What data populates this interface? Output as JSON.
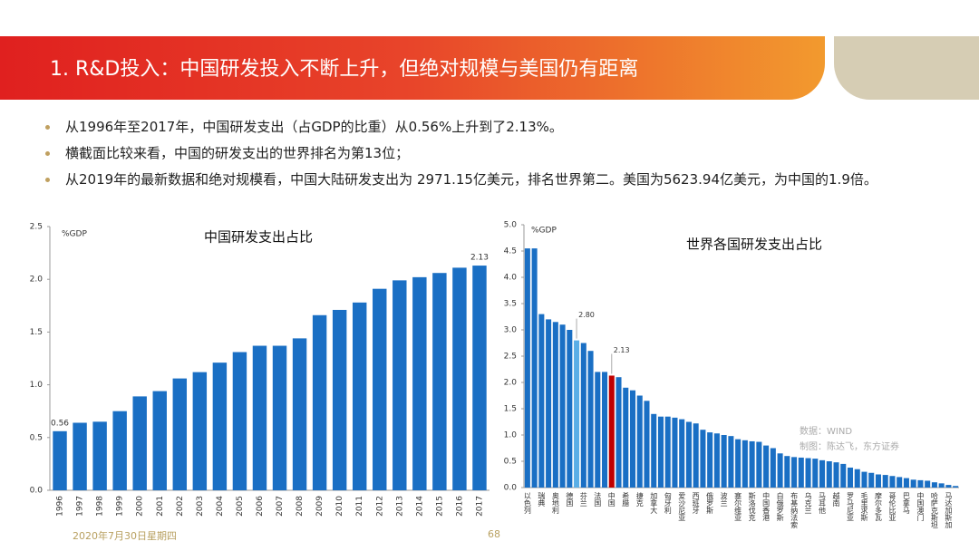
{
  "header": {
    "title": "1. R&D投入：中国研发投入不断上升，但绝对规模与美国仍有距离"
  },
  "bullets": [
    "从1996年至2017年，中国研发支出（占GDP的比重）从0.56%上升到了2.13%。",
    "横截面比较来看，中国的研发支出的世界排名为第13位；",
    "从2019年的最新数据和绝对规模看，中国大陆研发支出为 2971.15亿美元，排名世界第二。美国为5623.94亿美元，为中国的1.9倍。"
  ],
  "footer": {
    "date": "2020年7月30日星期四",
    "page": "68"
  },
  "chart_data": [
    {
      "type": "bar",
      "title": "中国研发支出占比",
      "ylabel": "%GDP",
      "categories": [
        "1996",
        "1997",
        "1998",
        "1999",
        "2000",
        "2001",
        "2002",
        "2003",
        "2004",
        "2005",
        "2006",
        "2007",
        "2008",
        "2009",
        "2010",
        "2011",
        "2012",
        "2013",
        "2014",
        "2015",
        "2016",
        "2017"
      ],
      "values": [
        0.56,
        0.64,
        0.65,
        0.75,
        0.89,
        0.94,
        1.06,
        1.12,
        1.21,
        1.31,
        1.37,
        1.37,
        1.44,
        1.66,
        1.71,
        1.78,
        1.91,
        1.99,
        2.02,
        2.06,
        2.11,
        2.13
      ],
      "value_labels": [
        "0.56",
        null,
        null,
        null,
        null,
        null,
        null,
        null,
        null,
        null,
        null,
        null,
        null,
        null,
        null,
        null,
        null,
        null,
        null,
        null,
        null,
        "2.13"
      ],
      "color": "#1a6fc4",
      "ylim": [
        0,
        2.5
      ],
      "yticks": [
        {
          "value": 0,
          "label": "0.0"
        },
        0.5,
        {
          "value": 1,
          "label": "1.0"
        },
        1.5,
        {
          "value": 2,
          "label": "2.0"
        },
        2.5
      ]
    },
    {
      "type": "bar",
      "title": "世界各国研发支出占比",
      "ylabel": "%GDP",
      "categories": [
        "以色列",
        null,
        "瑞典",
        null,
        "奥地利",
        null,
        "德国",
        null,
        "芬兰",
        null,
        "法国",
        null,
        "中国",
        null,
        "希腊",
        null,
        "捷克",
        null,
        "加拿大",
        null,
        "匈牙利",
        null,
        "爱沙尼亚",
        null,
        "西班牙",
        null,
        "俄罗斯",
        null,
        "波兰",
        null,
        "塞尔维亚",
        null,
        "斯洛伐克",
        null,
        "中国香港",
        null,
        "白俄罗斯",
        null,
        "布基纳法索",
        null,
        "乌克兰",
        null,
        "马耳他",
        null,
        "越南",
        null,
        "罗马尼亚",
        null,
        "毛里求斯",
        null,
        "摩尔多瓦",
        null,
        "哥伦比亚",
        null,
        "巴拿马",
        null,
        "中国澳门",
        null,
        "哈萨克斯坦",
        null,
        "马达加斯加",
        null
      ],
      "values": [
        4.55,
        4.55,
        3.3,
        3.2,
        3.15,
        3.1,
        3.0,
        2.8,
        2.75,
        2.6,
        2.2,
        2.2,
        2.13,
        2.1,
        1.9,
        1.85,
        1.75,
        1.65,
        1.4,
        1.35,
        1.35,
        1.33,
        1.3,
        1.25,
        1.22,
        1.1,
        1.05,
        1.03,
        1.0,
        0.98,
        0.92,
        0.9,
        0.88,
        0.87,
        0.8,
        0.75,
        0.65,
        0.6,
        0.58,
        0.57,
        0.56,
        0.55,
        0.52,
        0.5,
        0.48,
        0.45,
        0.38,
        0.35,
        0.3,
        0.28,
        0.25,
        0.24,
        0.22,
        0.2,
        0.18,
        0.15,
        0.14,
        0.13,
        0.1,
        0.08,
        0.05,
        0.03
      ],
      "value_labels": [
        null,
        null,
        null,
        null,
        null,
        null,
        null,
        "2.80",
        null,
        null,
        null,
        null,
        "2.13",
        null,
        null,
        null,
        null,
        null,
        null,
        null,
        null,
        null,
        null,
        null,
        null,
        null,
        null,
        null,
        null,
        null,
        null,
        null,
        null,
        null,
        null,
        null,
        null,
        null,
        null,
        null,
        null,
        null,
        null,
        null,
        null,
        null,
        null,
        null,
        null,
        null,
        null,
        null,
        null,
        null,
        null,
        null,
        null,
        null,
        null,
        null,
        null,
        null
      ],
      "colors": [
        "#1a6fc4",
        "#1a6fc4",
        "#1a6fc4",
        "#1a6fc4",
        "#1a6fc4",
        "#1a6fc4",
        "#1a6fc4",
        "#5aaee6",
        "#1a6fc4",
        "#1a6fc4",
        "#1a6fc4",
        "#1a6fc4",
        "#c00000",
        "#1a6fc4",
        "#1a6fc4",
        "#1a6fc4",
        "#1a6fc4",
        "#1a6fc4",
        "#1a6fc4",
        "#1a6fc4",
        "#1a6fc4",
        "#1a6fc4",
        "#1a6fc4",
        "#1a6fc4",
        "#1a6fc4",
        "#1a6fc4",
        "#1a6fc4",
        "#1a6fc4",
        "#1a6fc4",
        "#1a6fc4",
        "#1a6fc4",
        "#1a6fc4",
        "#1a6fc4",
        "#1a6fc4",
        "#1a6fc4",
        "#1a6fc4",
        "#1a6fc4",
        "#1a6fc4",
        "#1a6fc4",
        "#1a6fc4",
        "#1a6fc4",
        "#1a6fc4",
        "#1a6fc4",
        "#1a6fc4",
        "#1a6fc4",
        "#1a6fc4",
        "#1a6fc4",
        "#1a6fc4",
        "#1a6fc4",
        "#1a6fc4",
        "#1a6fc4",
        "#1a6fc4",
        "#1a6fc4",
        "#1a6fc4",
        "#1a6fc4",
        "#1a6fc4",
        "#1a6fc4",
        "#1a6fc4",
        "#1a6fc4",
        "#1a6fc4",
        "#1a6fc4",
        "#1a6fc4"
      ],
      "ylim": [
        0,
        5
      ],
      "yticks": [
        {
          "value": 0,
          "label": "0.0"
        },
        0.5,
        {
          "value": 1,
          "label": "1.0"
        },
        1.5,
        {
          "value": 2,
          "label": "2.0"
        },
        2.5,
        {
          "value": 3,
          "label": "3.0"
        },
        3.5,
        {
          "value": 4,
          "label": "4.0"
        },
        4.5,
        {
          "value": 5,
          "label": "5.0"
        }
      ],
      "notes": [
        "数据：WIND",
        "制图：陈达飞，东方证券"
      ]
    }
  ]
}
